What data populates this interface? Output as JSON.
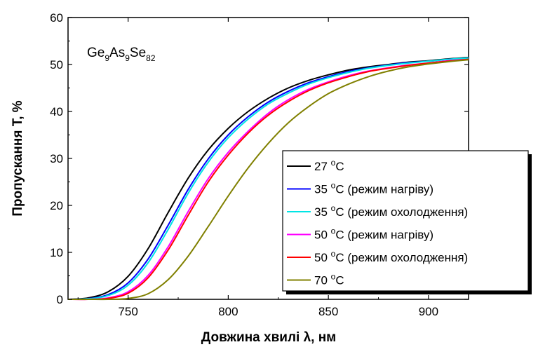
{
  "chart_data": {
    "type": "line",
    "xlabel": "Довжина хвилі λ, нм",
    "ylabel": "Пропускання T, %",
    "xlim": [
      720,
      920
    ],
    "ylim": [
      0,
      60
    ],
    "xticks": [
      750,
      800,
      850,
      900
    ],
    "yticks": [
      0,
      10,
      20,
      30,
      40,
      50,
      60
    ],
    "annotation": {
      "base": [
        "Ge",
        "As",
        "Se"
      ],
      "subs": [
        "9",
        "9",
        "82"
      ]
    },
    "legend_position": "lower-right",
    "series": [
      {
        "name": "27 °C",
        "temp": "27",
        "mode": "",
        "color": "#000000",
        "x": [
          720,
          730,
          740,
          750,
          760,
          770,
          780,
          790,
          800,
          810,
          820,
          830,
          840,
          850,
          860,
          870,
          880,
          890,
          900,
          910,
          920
        ],
        "y": [
          0,
          0.3,
          1.6,
          4.9,
          10.8,
          18.5,
          25.8,
          31.8,
          36.4,
          40.0,
          42.8,
          45.0,
          46.6,
          47.8,
          48.8,
          49.5,
          50.0,
          50.5,
          50.8,
          51.2,
          51.5
        ]
      },
      {
        "name": "35 °C (режим нагріву)",
        "temp": "35",
        "mode": " (режим нагріву)",
        "color": "#0000ff",
        "x": [
          720,
          730,
          740,
          750,
          760,
          770,
          780,
          790,
          800,
          810,
          820,
          830,
          840,
          850,
          860,
          870,
          880,
          890,
          900,
          910,
          920
        ],
        "y": [
          0,
          0.15,
          1.0,
          3.5,
          8.6,
          15.8,
          23.4,
          29.9,
          35.0,
          38.9,
          42.0,
          44.3,
          46.1,
          47.4,
          48.5,
          49.3,
          49.9,
          50.4,
          50.7,
          51.1,
          51.4
        ]
      },
      {
        "name": "35 °C (режим охолодження)",
        "temp": "35",
        "mode": " (режим охолодження)",
        "color": "#00e5e5",
        "x": [
          720,
          730,
          740,
          750,
          760,
          770,
          780,
          790,
          800,
          810,
          820,
          830,
          840,
          850,
          860,
          870,
          880,
          890,
          900,
          910,
          920
        ],
        "y": [
          0,
          0.1,
          0.8,
          3.0,
          7.8,
          14.9,
          22.6,
          29.2,
          34.4,
          38.4,
          41.6,
          43.9,
          45.8,
          47.2,
          48.3,
          49.2,
          49.8,
          50.3,
          50.7,
          51.1,
          51.4
        ]
      },
      {
        "name": "50 °C (режим нагріву)",
        "temp": "50",
        "mode": " (режим нагріву)",
        "color": "#ff00ff",
        "x": [
          720,
          730,
          740,
          750,
          760,
          770,
          780,
          790,
          800,
          810,
          820,
          830,
          840,
          850,
          860,
          870,
          880,
          890,
          900,
          910,
          920
        ],
        "y": [
          0,
          0,
          0.3,
          1.6,
          5.1,
          11.2,
          18.7,
          25.7,
          31.3,
          35.8,
          39.6,
          42.5,
          44.7,
          46.3,
          47.6,
          48.6,
          49.3,
          49.9,
          50.3,
          50.8,
          51.1
        ]
      },
      {
        "name": "50 °C (режим охолодження)",
        "temp": "50",
        "mode": " (режим охолодження)",
        "color": "#ff0000",
        "x": [
          720,
          730,
          740,
          750,
          760,
          770,
          780,
          790,
          800,
          810,
          820,
          830,
          840,
          850,
          860,
          870,
          880,
          890,
          900,
          910,
          920
        ],
        "y": [
          0,
          0,
          0.2,
          1.3,
          4.6,
          10.5,
          17.9,
          25.0,
          30.7,
          35.4,
          39.2,
          42.1,
          44.4,
          46.1,
          47.4,
          48.5,
          49.2,
          49.8,
          50.3,
          50.7,
          51.1
        ]
      },
      {
        "name": "70 °C",
        "temp": "70",
        "mode": "",
        "color": "#808000",
        "x": [
          720,
          730,
          740,
          750,
          760,
          770,
          780,
          790,
          800,
          810,
          820,
          830,
          840,
          850,
          860,
          870,
          880,
          890,
          900,
          910,
          920
        ],
        "y": [
          0,
          0,
          0,
          0.2,
          1.2,
          4.2,
          9.2,
          15.5,
          22.0,
          28.0,
          33.2,
          37.6,
          41.0,
          43.8,
          45.8,
          47.4,
          48.6,
          49.5,
          50.1,
          50.6,
          51.0
        ]
      }
    ]
  }
}
